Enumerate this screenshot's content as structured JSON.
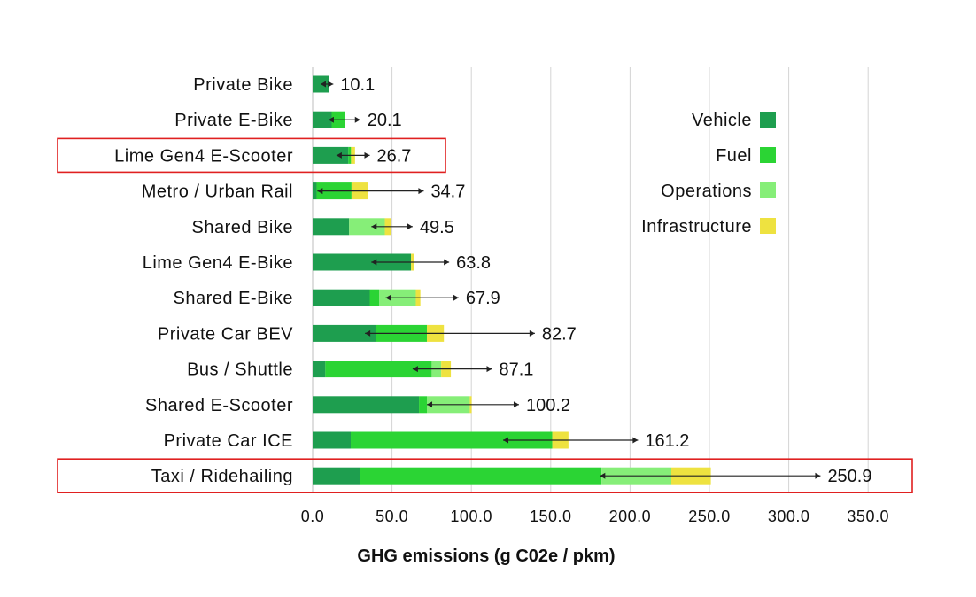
{
  "chart_data": {
    "type": "bar",
    "orientation": "horizontal",
    "stacked": true,
    "xlabel": "GHG emissions (g C02e / pkm)",
    "xlim": [
      0,
      350
    ],
    "xticks": [
      "0.0",
      "50.0",
      "100.0",
      "150.0",
      "200.0",
      "250.0",
      "300.0",
      "350.0"
    ],
    "grid": "vertical",
    "legend_position": "right",
    "categories": [
      "Private Bike",
      "Private E-Bike",
      "Lime Gen4 E-Scooter",
      "Metro / Urban Rail",
      "Shared Bike",
      "Lime Gen4 E-Bike",
      "Shared E-Bike",
      "Private Car BEV",
      "Bus / Shuttle",
      "Shared E-Scooter",
      "Private Car ICE",
      "Taxi / Ridehailing"
    ],
    "highlighted": [
      "Lime Gen4 E-Scooter",
      "Taxi / Ridehailing"
    ],
    "totals_labels": [
      "10.1",
      "20.1",
      "26.7",
      "34.7",
      "49.5",
      "63.8",
      "67.9",
      "82.7",
      "87.1",
      "100.2",
      "161.2",
      "250.9"
    ],
    "totals": [
      10.1,
      20.1,
      26.7,
      34.7,
      49.5,
      63.8,
      67.9,
      82.7,
      87.1,
      100.2,
      161.2,
      250.9
    ],
    "series": [
      {
        "name": "Vehicle",
        "color": "#1e9e4f",
        "values": [
          10.1,
          12.0,
          22.5,
          2.5,
          23.0,
          62.0,
          36.0,
          40.0,
          8.0,
          67.0,
          24.0,
          30.0
        ]
      },
      {
        "name": "Fuel",
        "color": "#2bd434",
        "values": [
          0.0,
          8.1,
          1.7,
          22.0,
          0.0,
          0.0,
          6.0,
          32.0,
          67.0,
          5.0,
          127.0,
          152.0
        ]
      },
      {
        "name": "Operations",
        "color": "#86ee78",
        "values": [
          0.0,
          0.0,
          0.0,
          0.0,
          22.5,
          0.0,
          23.0,
          0.0,
          6.0,
          27.0,
          0.0,
          44.0
        ]
      },
      {
        "name": "Infrastructure",
        "color": "#eee240",
        "values": [
          0.0,
          0.0,
          2.5,
          10.2,
          4.0,
          1.8,
          2.9,
          10.7,
          6.1,
          1.2,
          10.2,
          24.9
        ]
      }
    ],
    "error_bars": [
      {
        "low": 5,
        "high": 13
      },
      {
        "low": 10,
        "high": 30
      },
      {
        "low": 15,
        "high": 36
      },
      {
        "low": 3,
        "high": 70
      },
      {
        "low": 37,
        "high": 63
      },
      {
        "low": 37,
        "high": 86
      },
      {
        "low": 46,
        "high": 92
      },
      {
        "low": 33,
        "high": 140
      },
      {
        "low": 63,
        "high": 113
      },
      {
        "low": 72,
        "high": 130
      },
      {
        "low": 120,
        "high": 205
      },
      {
        "low": 181,
        "high": 320
      }
    ]
  }
}
